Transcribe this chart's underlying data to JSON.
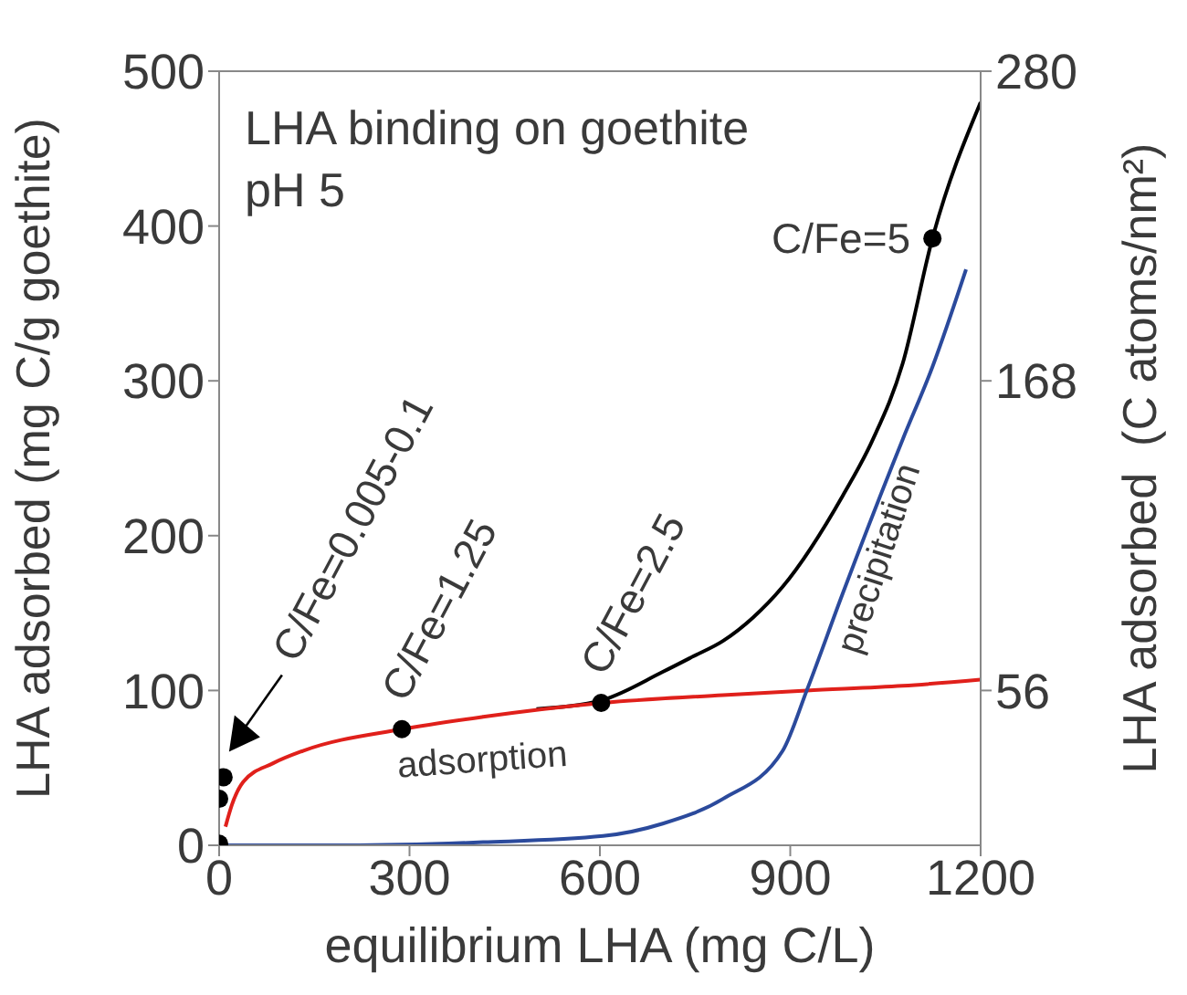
{
  "chart_data": {
    "type": "line",
    "title": "LHA binding on goethite",
    "subtitle": "pH 5",
    "xlabel": "equilibrium LHA (mg C/L)",
    "ylabel": "LHA adsorbed (mg C/g goethite)",
    "y2label": "LHA adsorbed  (C atoms/nm²)",
    "xlim": [
      0,
      1200
    ],
    "xticks": [
      0,
      300,
      600,
      900,
      1200
    ],
    "ylim": [
      0,
      500
    ],
    "yticks": [
      0,
      100,
      200,
      300,
      400,
      500
    ],
    "y2lim": [
      0,
      280
    ],
    "y2ticks": [
      56,
      168,
      280
    ],
    "series": [
      {
        "color": "#000000",
        "x": [
          500,
          605,
          699,
          747,
          794,
          841,
          888,
          983,
          1030,
          1077,
          1124,
          1200
        ],
        "values": [
          88,
          94,
          112,
          122,
          132,
          147,
          167,
          226,
          262,
          311,
          392,
          480
        ]
      },
      {
        "name": "adsorption",
        "color": "#e0201b",
        "x": [
          10,
          20,
          38,
          85,
          132,
          288,
          416,
          605,
          794,
          926,
          1077,
          1200
        ],
        "values": [
          12,
          26,
          41,
          53,
          61,
          75,
          83,
          92,
          97,
          100,
          103,
          107
        ]
      },
      {
        "name": "precipitation",
        "color": "#2b4a9c",
        "x": [
          0,
          200,
          416,
          605,
          699,
          794,
          888,
          926,
          983,
          1077,
          1124,
          1177
        ],
        "values": [
          0,
          0,
          2,
          6,
          14,
          30,
          61,
          100,
          163,
          262,
          309,
          372
        ]
      },
      {
        "type": "scatter",
        "marker": "circle",
        "color": "#000000",
        "x": [
          0,
          0,
          7,
          288,
          602,
          1124
        ],
        "values": [
          1,
          30,
          44,
          75,
          92,
          392
        ]
      }
    ],
    "annotations": [
      {
        "text": "C/Fe=0.005-0.1",
        "x": 7,
        "y": 44
      },
      {
        "text": "C/Fe=1.25",
        "x": 288,
        "y": 75
      },
      {
        "text": "C/Fe=2.5",
        "x": 602,
        "y": 92
      },
      {
        "text": "C/Fe=5",
        "x": 1124,
        "y": 392
      }
    ]
  }
}
